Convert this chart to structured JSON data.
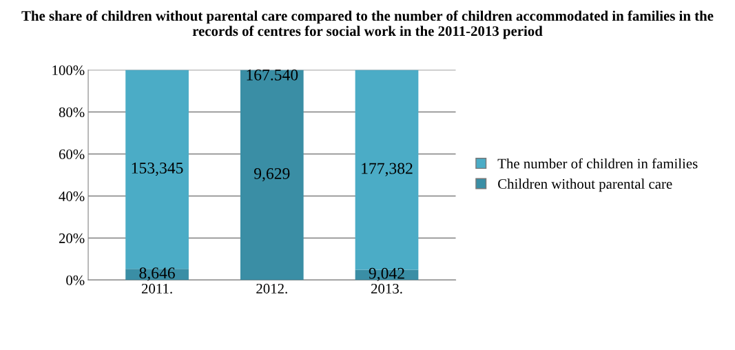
{
  "chart_data": {
    "type": "bar",
    "stacked": true,
    "title": "The share of children without parental care compared to the number of children accommodated in families in the records of centres for social work in the 2011-2013 period",
    "categories": [
      "2011.",
      "2012.",
      "2013."
    ],
    "series": [
      {
        "name": "Children without parental care",
        "color": "#3a8ea5",
        "values": [
          5.3,
          100,
          4.9
        ]
      },
      {
        "name": "The number of children in families",
        "color": "#4bacc6",
        "values": [
          94.7,
          0,
          95.1
        ]
      }
    ],
    "annotations": [
      "8,646",
      "153,345",
      "9,629",
      "167.540",
      "9,042",
      "177,382"
    ],
    "ylim": [
      0,
      100
    ],
    "yticks": [
      {
        "value": 0,
        "label": "0%"
      },
      {
        "value": 20,
        "label": "20%"
      },
      {
        "value": 40,
        "label": "40%"
      },
      {
        "value": 60,
        "label": "60%"
      },
      {
        "value": 80,
        "label": "80%"
      },
      {
        "value": 100,
        "label": "100%"
      }
    ],
    "grid": "y",
    "legend": "right"
  }
}
